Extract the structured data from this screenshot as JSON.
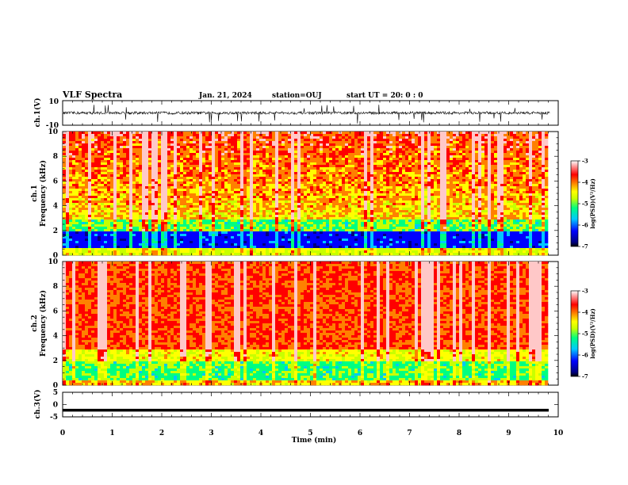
{
  "header": {
    "title": "VLF Spectra",
    "date": "Jan. 21, 2024",
    "station": "station=OUJ",
    "start": "start UT =  20: 0  : 0"
  },
  "chart_data": [
    {
      "type": "line",
      "name": "ch1-waveform",
      "ylabel": "ch.1(V)",
      "ylim": [
        -10,
        10
      ],
      "yticks": [
        "10",
        "-10"
      ],
      "baseline": 0,
      "xlim": [
        0,
        10
      ]
    },
    {
      "type": "heatmap",
      "name": "ch1-spectrogram",
      "ylabel": "ch.1\nFrequency (kHz)",
      "ylabel_lines": [
        "ch.1",
        "Frequency (kHz)"
      ],
      "ylim": [
        0,
        10
      ],
      "yticks": [
        "0",
        "2",
        "4",
        "6",
        "8",
        "10"
      ],
      "xlim": [
        0,
        9.83
      ],
      "colorbar": {
        "label": "log(PSD)(V²/Hz)",
        "ticks": [
          "-3",
          "-4",
          "-5",
          "-6",
          "-7"
        ],
        "range": [
          -7,
          -3
        ]
      }
    },
    {
      "type": "heatmap",
      "name": "ch2-spectrogram",
      "ylabel_lines": [
        "ch.2",
        "Frequency (kHz)"
      ],
      "ylim": [
        0,
        10
      ],
      "yticks": [
        "0",
        "2",
        "4",
        "6",
        "8",
        "10"
      ],
      "xlim": [
        0,
        9.83
      ],
      "colorbar": {
        "label": "log(PSD)(V²/Hz)",
        "ticks": [
          "-3",
          "-4",
          "-5",
          "-6",
          "-7"
        ],
        "range": [
          -7,
          -3
        ]
      }
    },
    {
      "type": "line",
      "name": "ch3-waveform",
      "ylabel": "ch.3(V)",
      "ylim": [
        -5,
        5
      ],
      "yticks": [
        "5",
        "0",
        "-5"
      ],
      "baseline": -2.3,
      "xlim": [
        0,
        10
      ]
    }
  ],
  "xaxis": {
    "label": "Time (min)",
    "ticks": [
      "0",
      "1",
      "2",
      "3",
      "4",
      "5",
      "6",
      "7",
      "8",
      "9",
      "10"
    ],
    "range": [
      0,
      10
    ]
  },
  "colors": {
    "scale": [
      "#000080",
      "#0000ff",
      "#00c8ff",
      "#00ff80",
      "#c8ff00",
      "#ffff00",
      "#ff8000",
      "#ff0000",
      "#ffc8c8"
    ]
  }
}
